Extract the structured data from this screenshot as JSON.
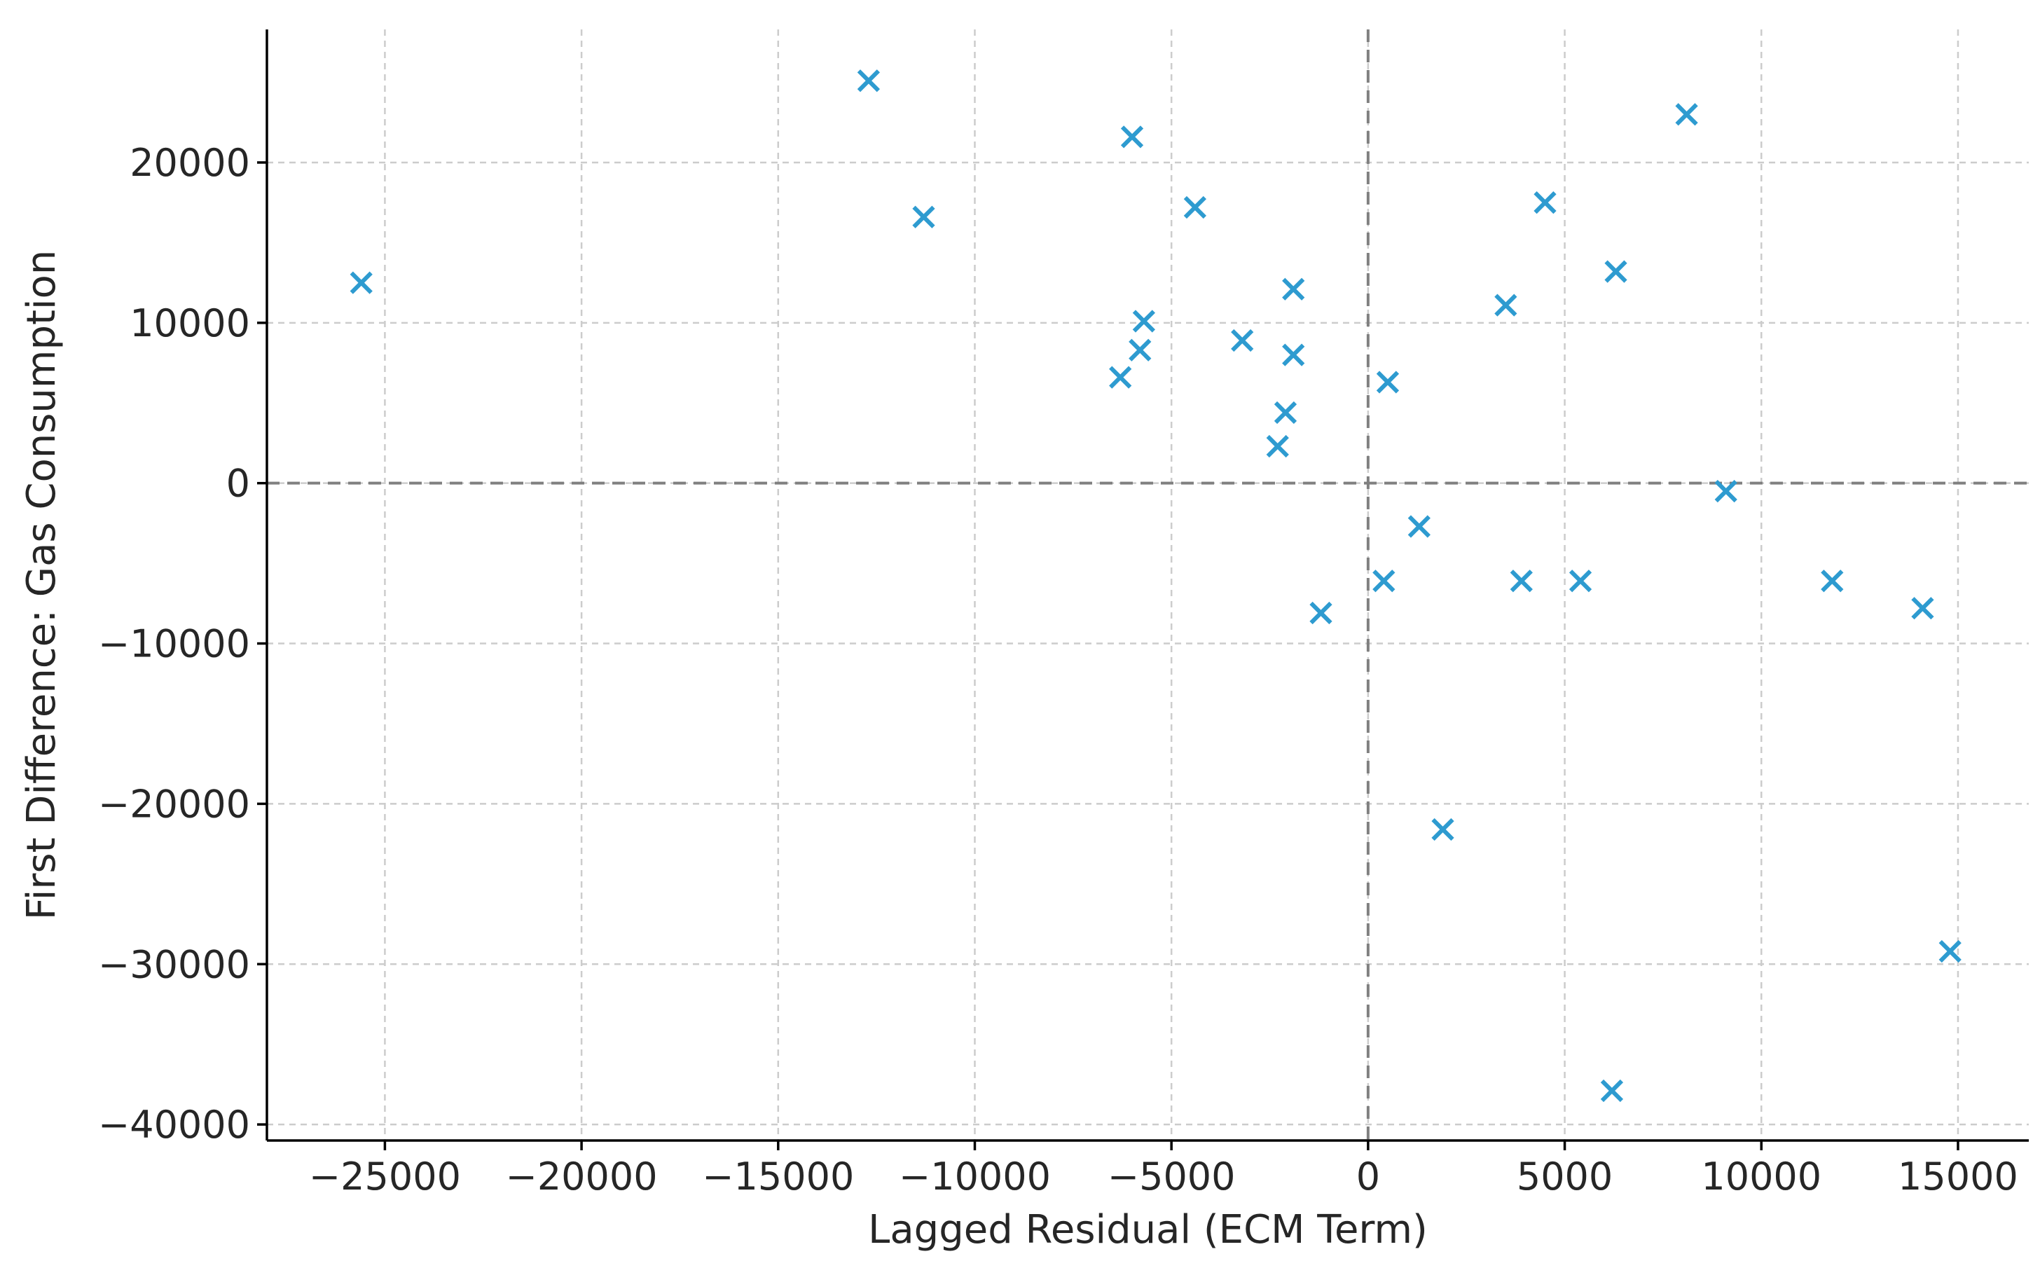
{
  "chart_data": {
    "type": "scatter",
    "xlabel": "Lagged Residual (ECM Term)",
    "ylabel": "First Difference: Gas Consumption",
    "xlim": [
      -28000,
      16800
    ],
    "ylim": [
      -41000,
      28300
    ],
    "x_ticks": [
      -25000,
      -20000,
      -15000,
      -10000,
      -5000,
      0,
      5000,
      10000,
      15000
    ],
    "x_tick_labels": [
      "−25000",
      "−20000",
      "−15000",
      "−10000",
      "−5000",
      "0",
      "5000",
      "10000",
      "15000"
    ],
    "y_ticks": [
      -40000,
      -30000,
      -20000,
      -10000,
      0,
      10000,
      20000
    ],
    "y_tick_labels": [
      "−40000",
      "−30000",
      "−20000",
      "−10000",
      "0",
      "10000",
      "20000"
    ],
    "grid": true,
    "reference_lines": {
      "x": 0,
      "y": 0
    },
    "marker": "x",
    "color": "#2e9bd0",
    "points": [
      {
        "x": -25600,
        "y": 12500
      },
      {
        "x": -12700,
        "y": 25100
      },
      {
        "x": -11300,
        "y": 16600
      },
      {
        "x": -6000,
        "y": 21600
      },
      {
        "x": -5700,
        "y": 10100
      },
      {
        "x": -5800,
        "y": 8300
      },
      {
        "x": -6300,
        "y": 6600
      },
      {
        "x": -4400,
        "y": 17200
      },
      {
        "x": -3200,
        "y": 8900
      },
      {
        "x": -1900,
        "y": 12100
      },
      {
        "x": -1900,
        "y": 8000
      },
      {
        "x": -2100,
        "y": 4400
      },
      {
        "x": -2300,
        "y": 2300
      },
      {
        "x": -1200,
        "y": -8100
      },
      {
        "x": 500,
        "y": 6300
      },
      {
        "x": 400,
        "y": -6100
      },
      {
        "x": 1300,
        "y": -2700
      },
      {
        "x": 1900,
        "y": -21600
      },
      {
        "x": 3500,
        "y": 11100
      },
      {
        "x": 4500,
        "y": 17500
      },
      {
        "x": 3900,
        "y": -6100
      },
      {
        "x": 5400,
        "y": -6100
      },
      {
        "x": 6300,
        "y": 13200
      },
      {
        "x": 6200,
        "y": -37900
      },
      {
        "x": 8100,
        "y": 23000
      },
      {
        "x": 9100,
        "y": -500
      },
      {
        "x": 11800,
        "y": -6100
      },
      {
        "x": 14100,
        "y": -7800
      },
      {
        "x": 14800,
        "y": -29200
      }
    ]
  }
}
